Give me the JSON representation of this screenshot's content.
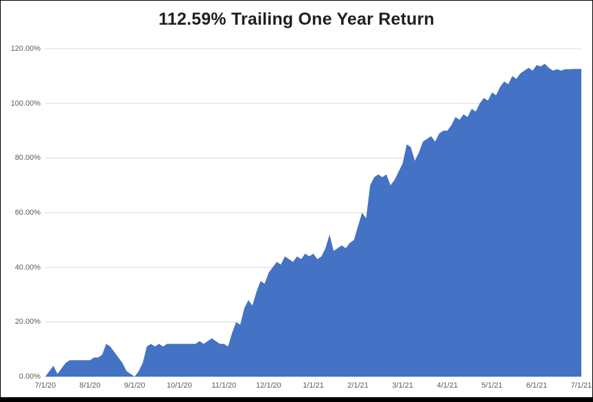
{
  "title": "112.59% Trailing One Year Return",
  "colors": {
    "area_fill": "#4472C4",
    "gridline": "#D9D9D9",
    "tick_label": "#595959",
    "title_text": "#1F1F1F",
    "background": "#FFFFFF",
    "frame_border": "#000000"
  },
  "chart_data": {
    "type": "area",
    "title": "112.59% Trailing One Year Return",
    "xlabel": "",
    "ylabel": "",
    "x_tick_labels": [
      "7/1/20",
      "8/1/20",
      "9/1/20",
      "10/1/20",
      "11/1/20",
      "12/1/20",
      "1/1/21",
      "2/1/21",
      "3/1/21",
      "4/1/21",
      "5/1/21",
      "6/1/21",
      "7/1/21"
    ],
    "y_tick_labels": [
      "0.00%",
      "20.00%",
      "40.00%",
      "60.00%",
      "80.00%",
      "100.00%",
      "120.00%"
    ],
    "ylim": [
      0,
      120
    ],
    "y_tick_step": 20,
    "grid": "horizontal",
    "legend": "none",
    "final_value_pct": 112.59,
    "series": [
      {
        "name": "Trailing One Year Return (%)",
        "values": [
          0,
          2,
          4,
          1,
          3,
          5,
          6,
          6,
          6,
          6,
          6,
          6,
          7,
          7,
          8,
          12,
          11,
          9,
          7,
          5,
          2,
          1,
          0,
          2,
          5,
          11,
          12,
          11,
          12,
          11,
          12,
          12,
          12,
          12,
          12,
          12,
          12,
          12,
          13,
          12,
          13,
          14,
          13,
          12,
          12,
          11,
          16,
          20,
          19,
          25,
          28,
          26,
          31,
          35,
          34,
          38,
          40,
          42,
          41,
          44,
          43,
          42,
          44,
          43,
          45,
          44,
          45,
          43,
          44,
          47,
          52,
          46,
          47,
          48,
          47,
          49,
          50,
          55,
          60,
          58,
          70,
          73,
          74,
          73,
          74,
          70,
          72,
          75,
          78,
          85,
          84,
          79,
          82,
          86,
          87,
          88,
          86,
          89,
          90,
          90,
          92,
          95,
          94,
          96,
          95,
          98,
          97,
          100,
          102,
          101,
          104,
          103,
          106,
          108,
          107,
          110,
          109,
          111,
          112,
          113,
          112,
          114,
          113.5,
          114.5,
          113,
          112,
          112.5,
          112,
          112.5,
          112.5,
          112.6,
          112.59,
          112.59
        ]
      }
    ]
  }
}
